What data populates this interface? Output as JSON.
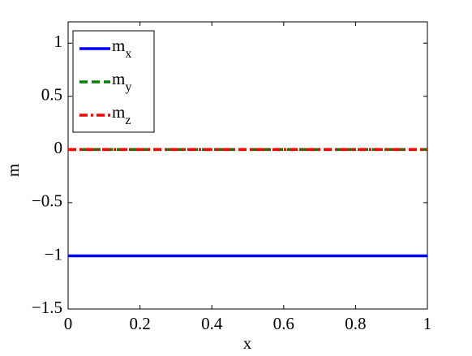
{
  "chart_data": {
    "type": "line",
    "x": [
      0,
      1
    ],
    "series": [
      {
        "name": "mx",
        "color": "#0000ff",
        "linestyle": "solid",
        "values": [
          -1,
          -1
        ]
      },
      {
        "name": "my",
        "color": "#008000",
        "linestyle": "dashed",
        "values": [
          0,
          0
        ]
      },
      {
        "name": "mz",
        "color": "#ff0000",
        "linestyle": "dashdot",
        "values": [
          0,
          0
        ]
      }
    ],
    "xlabel": "x",
    "ylabel": "m",
    "xlim": [
      0,
      1
    ],
    "ylim": [
      -1.5,
      1.2
    ],
    "xticks": [
      0,
      0.2,
      0.4,
      0.6,
      0.8,
      1
    ],
    "yticks": [
      {
        "value": -1.5,
        "label": "−1.5"
      },
      {
        "value": -1,
        "label": "−1"
      },
      {
        "value": -0.5,
        "label": "−0.5"
      },
      0,
      0.5,
      1
    ],
    "legend": "top-left",
    "grid": false
  }
}
